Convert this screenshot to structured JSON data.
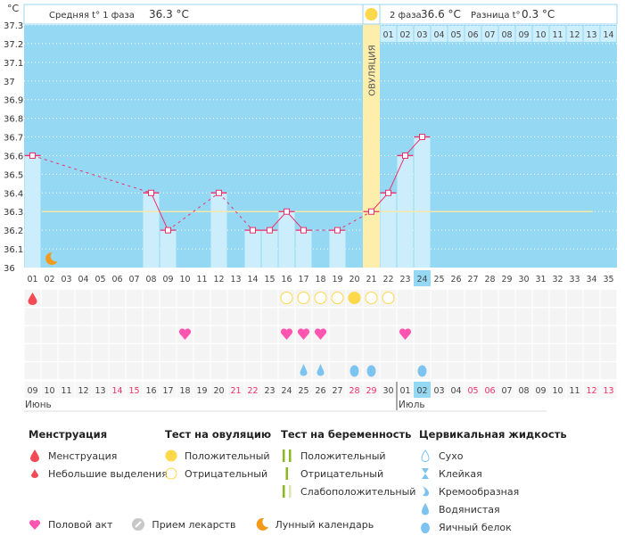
{
  "header": {
    "unit": "°C",
    "phase1": "Средняя t° 1 фаза",
    "phase1_value": "36.3 °C",
    "phase2": "2 фаза",
    "phase2_value": "36.6 °C",
    "diff": "Разница t°",
    "diff_value": "0.3 °C",
    "ovulation_label": "ОВУЛЯЦИЯ"
  },
  "chart_data": {
    "type": "bar",
    "ylabel": "°C",
    "ylim": [
      36,
      37.3
    ],
    "yticks": [
      "36",
      "36.1",
      "36.2",
      "36.3",
      "36.4",
      "36.5",
      "36.6",
      "36.7",
      "36.8",
      "36.9",
      "37",
      "37.1",
      "37.2",
      "37.3"
    ],
    "cycle_days": [
      "01",
      "02",
      "03",
      "04",
      "05",
      "06",
      "07",
      "08",
      "09",
      "10",
      "11",
      "12",
      "13",
      "14",
      "15",
      "16",
      "17",
      "18",
      "19",
      "20",
      "21",
      "22",
      "23",
      "24",
      "25",
      "26",
      "27",
      "28",
      "29",
      "30",
      "31",
      "32",
      "33",
      "34",
      "35"
    ],
    "phase2_days": [
      "01",
      "02",
      "03",
      "04",
      "05",
      "06",
      "07",
      "08",
      "09",
      "10",
      "11",
      "12",
      "13",
      "14"
    ],
    "temperatures": [
      {
        "day": 1,
        "t": 36.6
      },
      {
        "day": 8,
        "t": 36.4
      },
      {
        "day": 9,
        "t": 36.2
      },
      {
        "day": 12,
        "t": 36.4
      },
      {
        "day": 14,
        "t": 36.2
      },
      {
        "day": 15,
        "t": 36.2
      },
      {
        "day": 16,
        "t": 36.3
      },
      {
        "day": 17,
        "t": 36.2
      },
      {
        "day": 19,
        "t": 36.2
      },
      {
        "day": 21,
        "t": 36.3
      },
      {
        "day": 22,
        "t": 36.4
      },
      {
        "day": 23,
        "t": 36.6
      },
      {
        "day": 24,
        "t": 36.7
      }
    ],
    "coverline": 36.3,
    "ovulation_day": 21,
    "current_day": 24,
    "moon_day": 2,
    "menstruation_days": [
      1
    ],
    "ovulation_tests": [
      {
        "day": 16,
        "r": "neg"
      },
      {
        "day": 17,
        "r": "neg"
      },
      {
        "day": 18,
        "r": "neg"
      },
      {
        "day": 19,
        "r": "neg"
      },
      {
        "day": 20,
        "r": "pos"
      },
      {
        "day": 21,
        "r": "neg"
      },
      {
        "day": 22,
        "r": "neg"
      }
    ],
    "intercourse_days": [
      10,
      16,
      17,
      18,
      23
    ],
    "cervical": [
      {
        "day": 17,
        "type": "watery"
      },
      {
        "day": 18,
        "type": "watery"
      },
      {
        "day": 20,
        "type": "egg"
      },
      {
        "day": 21,
        "type": "egg"
      },
      {
        "day": 24,
        "type": "egg"
      }
    ],
    "dates": [
      "09",
      "10",
      "11",
      "12",
      "13",
      "14",
      "15",
      "16",
      "17",
      "18",
      "19",
      "20",
      "21",
      "22",
      "23",
      "24",
      "25",
      "26",
      "27",
      "28",
      "29",
      "30",
      "01",
      "02",
      "03",
      "04",
      "05",
      "06",
      "07",
      "08",
      "09",
      "10",
      "11",
      "12",
      "13"
    ],
    "weekend_idx": [
      5,
      6,
      12,
      13,
      19,
      20,
      26,
      27,
      33,
      34
    ],
    "months": [
      "Июнь",
      "Июль"
    ]
  },
  "colors": {
    "bg": "#94d8f3",
    "bar": "#cdeefc",
    "line": "#f0306a",
    "ovu": "#fdeeab",
    "cover": "#f8e7a6",
    "sun": "#fcd84a",
    "heart": "#ff55b0",
    "drop": "#7cc4ef",
    "red": "#f24b55"
  },
  "legend": {
    "menstruation": {
      "title": "Менструация",
      "items": [
        "Менструация",
        "Небольшие выделения"
      ]
    },
    "ovulation": {
      "title": "Тест на овуляцию",
      "items": [
        "Положительный",
        "Отрицательный"
      ]
    },
    "pregnancy": {
      "title": "Тест на беременность",
      "items": [
        "Положительный",
        "Отрицательный",
        "Слабоположительный"
      ]
    },
    "cervical": {
      "title": "Цервикальная жидкость",
      "items": [
        "Сухо",
        "Клейкая",
        "Кремообразная",
        "Водянистая",
        "Яичный белок"
      ]
    },
    "other": [
      "Половой акт",
      "Прием лекарств",
      "Лунный календарь"
    ]
  }
}
